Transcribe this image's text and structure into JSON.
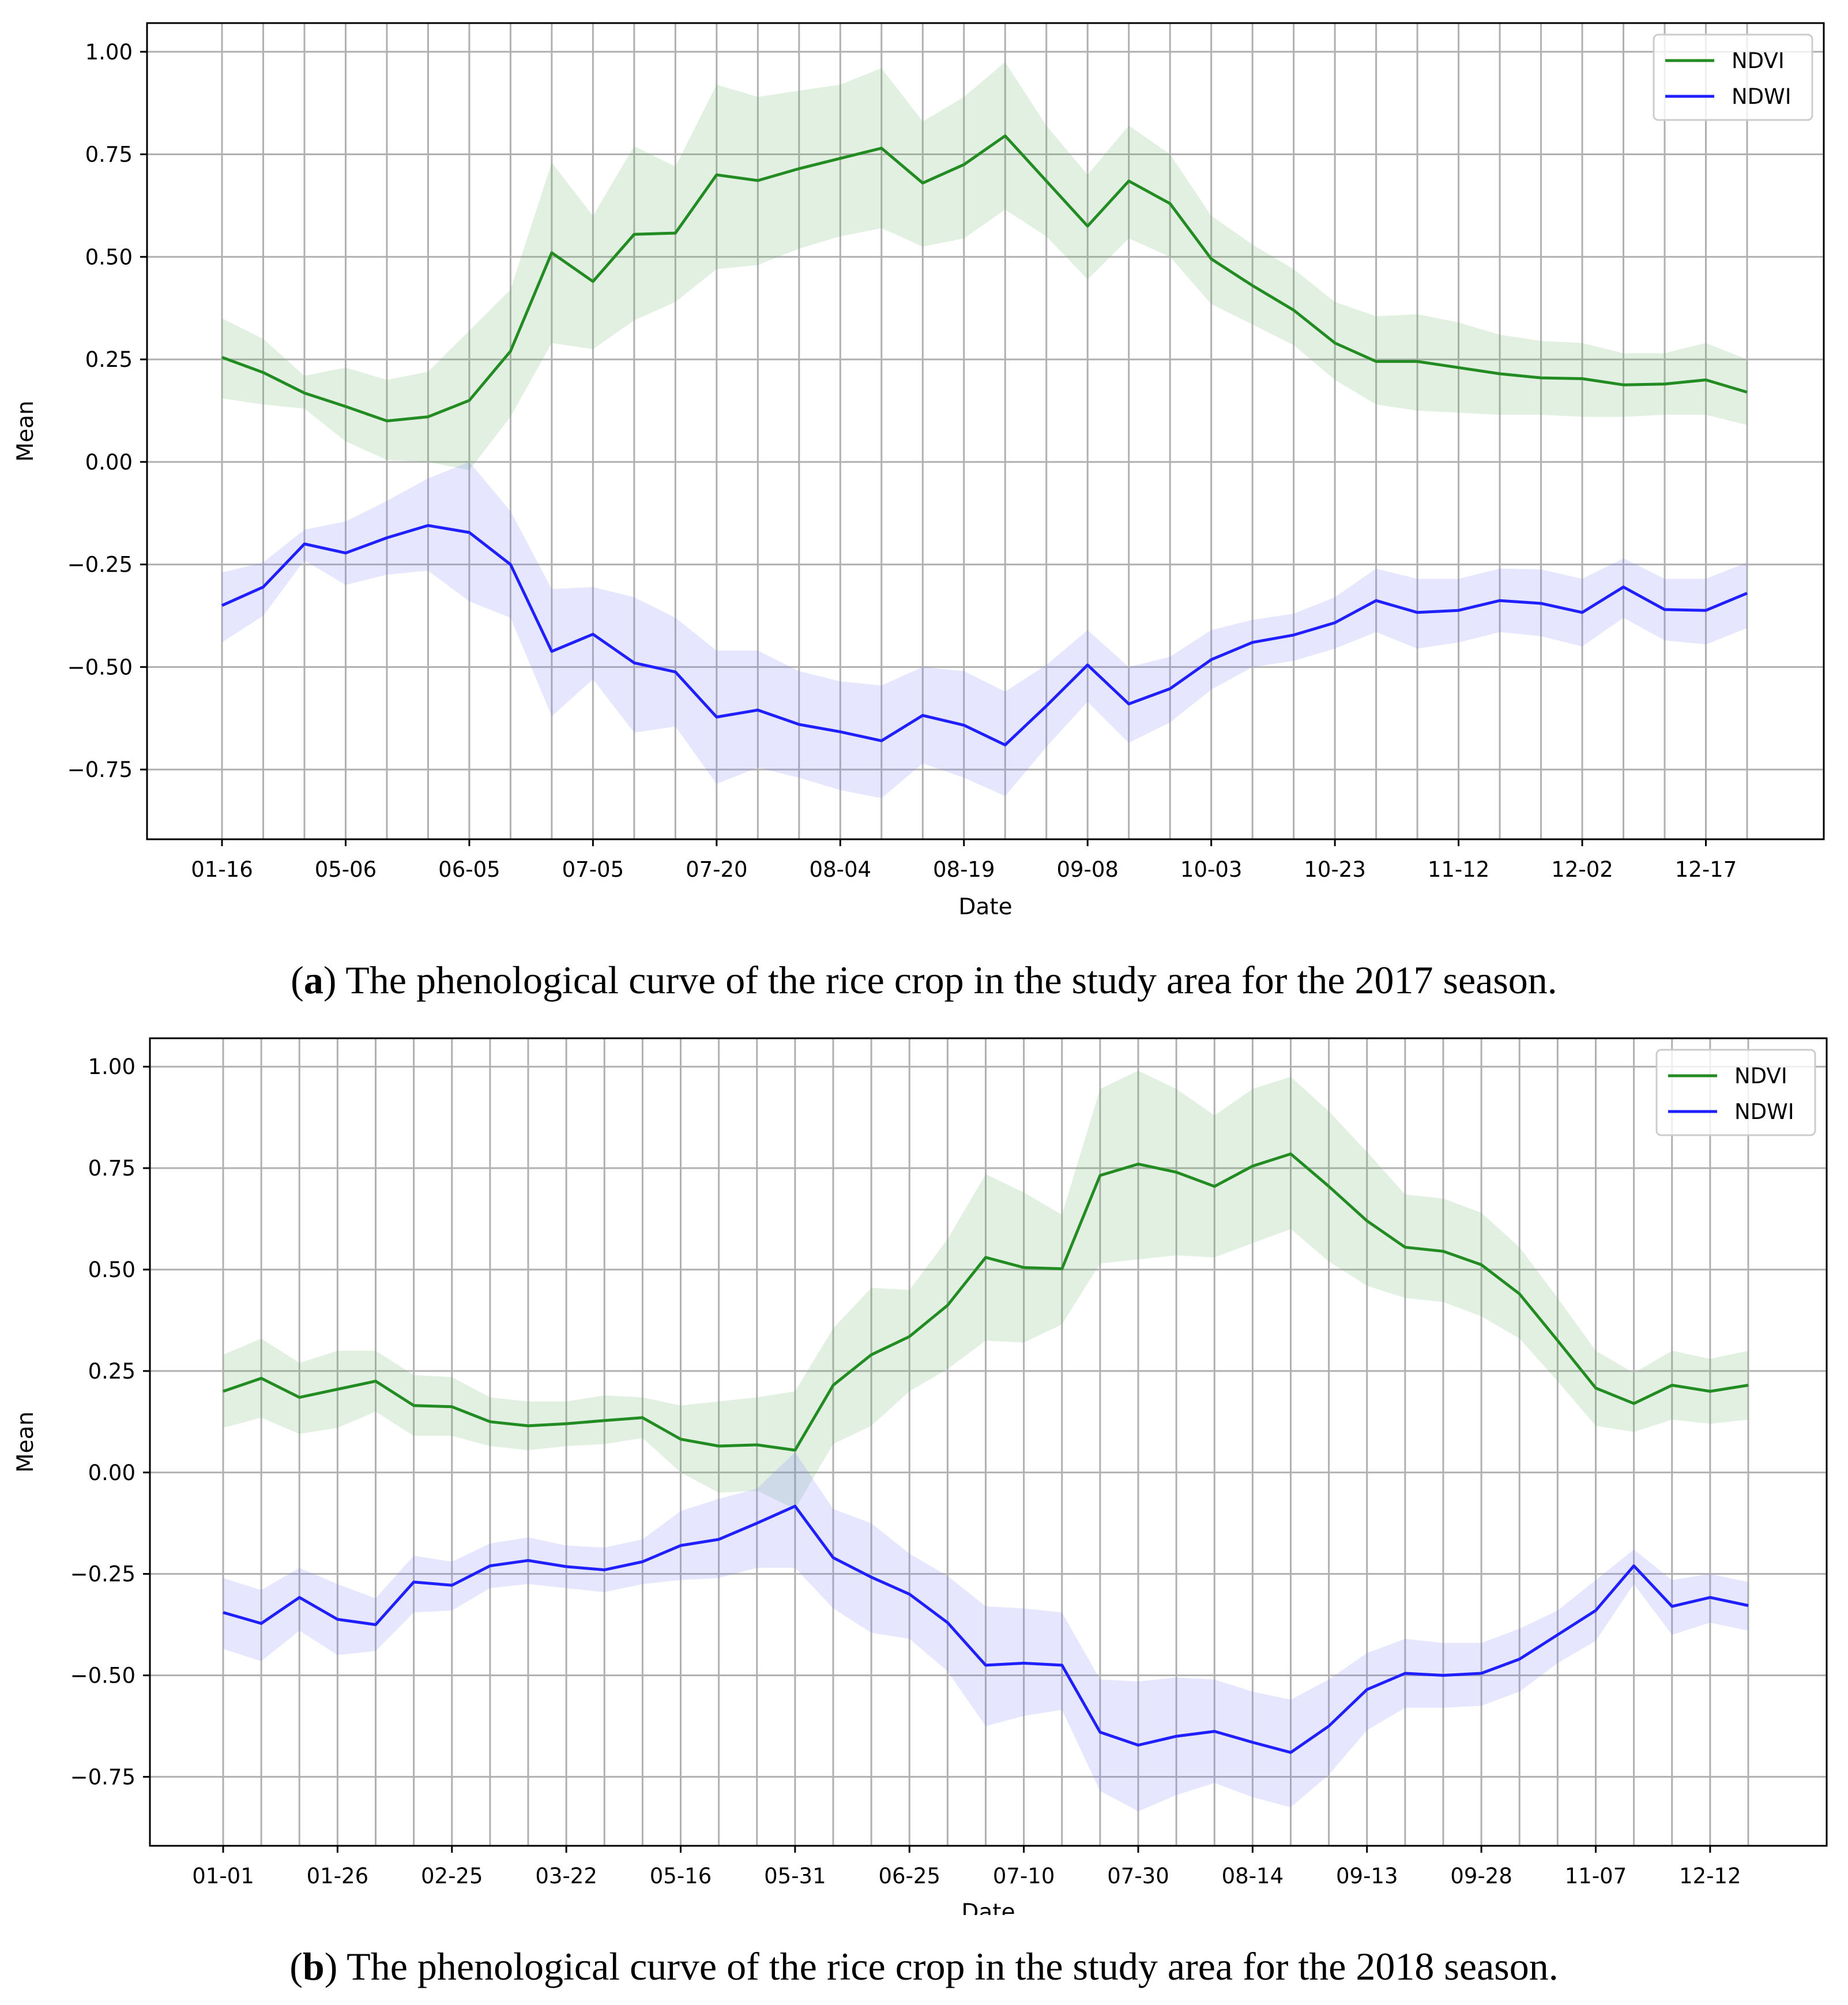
{
  "chart_data": [
    {
      "type": "line",
      "panel_label": "a",
      "caption_prefix": "(",
      "caption_suffix": ") The phenological curve of the rice crop in the study area for the 2017 season.",
      "title": "",
      "xlabel": "Date",
      "ylabel": "Mean",
      "ylim": [
        -0.92,
        1.07
      ],
      "yticks": [
        1.0,
        0.75,
        0.5,
        0.25,
        0.0,
        -0.25,
        -0.5,
        -0.75
      ],
      "ytick_labels": [
        "1.00",
        "0.75",
        "0.50",
        "0.25",
        "0.00",
        "−0.25",
        "−0.50",
        "−0.75"
      ],
      "grid": true,
      "legend": "top-right",
      "n_points": 38,
      "xtick_labels": [
        {
          "index": 0,
          "label": "01-16"
        },
        {
          "index": 3,
          "label": "05-06"
        },
        {
          "index": 6,
          "label": "06-05"
        },
        {
          "index": 9,
          "label": "07-05"
        },
        {
          "index": 12,
          "label": "07-20"
        },
        {
          "index": 15,
          "label": "08-04"
        },
        {
          "index": 18,
          "label": "08-19"
        },
        {
          "index": 21,
          "label": "09-08"
        },
        {
          "index": 24,
          "label": "10-03"
        },
        {
          "index": 27,
          "label": "10-23"
        },
        {
          "index": 30,
          "label": "11-12"
        },
        {
          "index": 33,
          "label": "12-02"
        },
        {
          "index": 36,
          "label": "12-17"
        }
      ],
      "series": [
        {
          "name": "NDVI",
          "color": "#228B22",
          "band_color": "#6ab46a",
          "values": [
            0.255,
            0.218,
            0.168,
            0.135,
            0.1,
            0.11,
            0.15,
            0.27,
            0.51,
            0.44,
            0.555,
            0.558,
            0.7,
            0.686,
            0.715,
            0.74,
            0.765,
            0.68,
            0.725,
            0.795,
            0.685,
            0.575,
            0.685,
            0.63,
            0.495,
            0.43,
            0.37,
            0.29,
            0.245,
            0.245,
            0.23,
            0.215,
            0.205,
            0.203,
            0.188,
            0.19,
            0.2,
            0.17
          ],
          "upper": [
            0.35,
            0.3,
            0.21,
            0.23,
            0.2,
            0.22,
            0.32,
            0.42,
            0.73,
            0.6,
            0.77,
            0.72,
            0.92,
            0.89,
            0.905,
            0.92,
            0.96,
            0.83,
            0.89,
            0.975,
            0.82,
            0.7,
            0.82,
            0.75,
            0.6,
            0.53,
            0.47,
            0.39,
            0.355,
            0.36,
            0.34,
            0.31,
            0.295,
            0.29,
            0.265,
            0.265,
            0.29,
            0.25
          ],
          "lower": [
            0.155,
            0.14,
            0.13,
            0.05,
            0.005,
            0.0,
            -0.02,
            0.11,
            0.29,
            0.275,
            0.345,
            0.39,
            0.47,
            0.48,
            0.52,
            0.55,
            0.57,
            0.525,
            0.545,
            0.615,
            0.55,
            0.445,
            0.545,
            0.5,
            0.385,
            0.335,
            0.285,
            0.2,
            0.14,
            0.125,
            0.12,
            0.115,
            0.115,
            0.11,
            0.11,
            0.115,
            0.115,
            0.09
          ]
        },
        {
          "name": "NDWI",
          "color": "#1f1fff",
          "band_color": "#8080ff",
          "values": [
            -0.35,
            -0.305,
            -0.2,
            -0.222,
            -0.185,
            -0.155,
            -0.172,
            -0.25,
            -0.462,
            -0.42,
            -0.49,
            -0.512,
            -0.622,
            -0.605,
            -0.64,
            -0.658,
            -0.68,
            -0.618,
            -0.642,
            -0.69,
            -0.595,
            -0.495,
            -0.59,
            -0.553,
            -0.482,
            -0.44,
            -0.422,
            -0.392,
            -0.338,
            -0.367,
            -0.362,
            -0.338,
            -0.345,
            -0.367,
            -0.305,
            -0.36,
            -0.362,
            -0.32
          ],
          "upper": [
            -0.27,
            -0.245,
            -0.165,
            -0.145,
            -0.095,
            -0.04,
            0.0,
            -0.12,
            -0.31,
            -0.305,
            -0.33,
            -0.38,
            -0.46,
            -0.46,
            -0.51,
            -0.535,
            -0.545,
            -0.5,
            -0.51,
            -0.56,
            -0.495,
            -0.41,
            -0.5,
            -0.475,
            -0.41,
            -0.385,
            -0.37,
            -0.33,
            -0.26,
            -0.285,
            -0.285,
            -0.26,
            -0.262,
            -0.285,
            -0.235,
            -0.285,
            -0.285,
            -0.245
          ],
          "lower": [
            -0.44,
            -0.375,
            -0.24,
            -0.3,
            -0.275,
            -0.265,
            -0.34,
            -0.38,
            -0.62,
            -0.53,
            -0.66,
            -0.645,
            -0.785,
            -0.745,
            -0.77,
            -0.8,
            -0.82,
            -0.735,
            -0.77,
            -0.815,
            -0.695,
            -0.585,
            -0.685,
            -0.635,
            -0.555,
            -0.5,
            -0.485,
            -0.455,
            -0.415,
            -0.455,
            -0.44,
            -0.415,
            -0.425,
            -0.45,
            -0.38,
            -0.435,
            -0.445,
            -0.405
          ]
        }
      ]
    },
    {
      "type": "line",
      "panel_label": "b",
      "caption_prefix": "(",
      "caption_suffix": ") The phenological curve of the rice crop in the study area for the 2018 season.",
      "title": "",
      "xlabel": "Date",
      "ylabel": "Mean",
      "ylim": [
        -0.92,
        1.07
      ],
      "yticks": [
        1.0,
        0.75,
        0.5,
        0.25,
        0.0,
        -0.25,
        -0.5,
        -0.75
      ],
      "ytick_labels": [
        "1.00",
        "0.75",
        "0.50",
        "0.25",
        "0.00",
        "−0.25",
        "−0.50",
        "−0.75"
      ],
      "grid": true,
      "legend": "top-right",
      "n_points": 41,
      "xtick_labels": [
        {
          "index": 0,
          "label": "01-01"
        },
        {
          "index": 3,
          "label": "01-26"
        },
        {
          "index": 6,
          "label": "02-25"
        },
        {
          "index": 9,
          "label": "03-22"
        },
        {
          "index": 12,
          "label": "05-16"
        },
        {
          "index": 15,
          "label": "05-31"
        },
        {
          "index": 18,
          "label": "06-25"
        },
        {
          "index": 21,
          "label": "07-10"
        },
        {
          "index": 24,
          "label": "07-30"
        },
        {
          "index": 27,
          "label": "08-14"
        },
        {
          "index": 30,
          "label": "09-13"
        },
        {
          "index": 33,
          "label": "09-28"
        },
        {
          "index": 36,
          "label": "11-07"
        },
        {
          "index": 39,
          "label": "12-12"
        }
      ],
      "series": [
        {
          "name": "NDVI",
          "color": "#228B22",
          "band_color": "#6ab46a",
          "values": [
            0.2,
            0.232,
            0.185,
            0.205,
            0.225,
            0.165,
            0.162,
            0.125,
            0.115,
            0.12,
            0.128,
            0.135,
            0.082,
            0.065,
            0.068,
            0.055,
            0.215,
            0.29,
            0.335,
            0.412,
            0.53,
            0.505,
            0.502,
            0.732,
            0.76,
            0.74,
            0.705,
            0.755,
            0.785,
            0.705,
            0.62,
            0.555,
            0.545,
            0.512,
            0.44,
            0.325,
            0.208,
            0.17,
            0.215,
            0.2,
            0.215
          ],
          "upper": [
            0.29,
            0.33,
            0.27,
            0.3,
            0.3,
            0.24,
            0.235,
            0.185,
            0.175,
            0.175,
            0.19,
            0.185,
            0.165,
            0.175,
            0.185,
            0.2,
            0.355,
            0.455,
            0.45,
            0.575,
            0.735,
            0.69,
            0.635,
            0.945,
            0.99,
            0.945,
            0.88,
            0.945,
            0.975,
            0.89,
            0.79,
            0.685,
            0.675,
            0.64,
            0.555,
            0.43,
            0.3,
            0.245,
            0.3,
            0.28,
            0.3
          ],
          "lower": [
            0.11,
            0.135,
            0.095,
            0.11,
            0.15,
            0.09,
            0.09,
            0.065,
            0.055,
            0.065,
            0.07,
            0.085,
            0.0,
            -0.05,
            -0.045,
            -0.09,
            0.07,
            0.115,
            0.2,
            0.255,
            0.325,
            0.32,
            0.365,
            0.515,
            0.525,
            0.535,
            0.53,
            0.565,
            0.6,
            0.52,
            0.46,
            0.43,
            0.42,
            0.385,
            0.33,
            0.225,
            0.115,
            0.1,
            0.13,
            0.12,
            0.13
          ]
        },
        {
          "name": "NDWI",
          "color": "#1f1fff",
          "band_color": "#8080ff",
          "values": [
            -0.345,
            -0.372,
            -0.308,
            -0.362,
            -0.375,
            -0.27,
            -0.278,
            -0.23,
            -0.217,
            -0.232,
            -0.24,
            -0.22,
            -0.18,
            -0.165,
            -0.125,
            -0.083,
            -0.21,
            -0.258,
            -0.3,
            -0.37,
            -0.475,
            -0.47,
            -0.475,
            -0.64,
            -0.672,
            -0.65,
            -0.638,
            -0.665,
            -0.69,
            -0.625,
            -0.535,
            -0.495,
            -0.5,
            -0.495,
            -0.46,
            -0.4,
            -0.34,
            -0.23,
            -0.33,
            -0.308,
            -0.328
          ],
          "upper": [
            -0.26,
            -0.29,
            -0.235,
            -0.275,
            -0.31,
            -0.205,
            -0.22,
            -0.175,
            -0.16,
            -0.18,
            -0.185,
            -0.165,
            -0.095,
            -0.065,
            -0.04,
            0.05,
            -0.09,
            -0.125,
            -0.2,
            -0.255,
            -0.33,
            -0.335,
            -0.345,
            -0.51,
            -0.515,
            -0.505,
            -0.51,
            -0.54,
            -0.56,
            -0.51,
            -0.445,
            -0.41,
            -0.42,
            -0.42,
            -0.385,
            -0.34,
            -0.265,
            -0.19,
            -0.265,
            -0.25,
            -0.27
          ],
          "lower": [
            -0.435,
            -0.465,
            -0.39,
            -0.45,
            -0.44,
            -0.345,
            -0.34,
            -0.285,
            -0.275,
            -0.285,
            -0.295,
            -0.275,
            -0.265,
            -0.26,
            -0.235,
            -0.235,
            -0.335,
            -0.395,
            -0.41,
            -0.49,
            -0.625,
            -0.6,
            -0.585,
            -0.785,
            -0.835,
            -0.795,
            -0.765,
            -0.8,
            -0.825,
            -0.745,
            -0.635,
            -0.58,
            -0.58,
            -0.575,
            -0.54,
            -0.47,
            -0.415,
            -0.275,
            -0.4,
            -0.37,
            -0.39
          ]
        }
      ]
    }
  ]
}
